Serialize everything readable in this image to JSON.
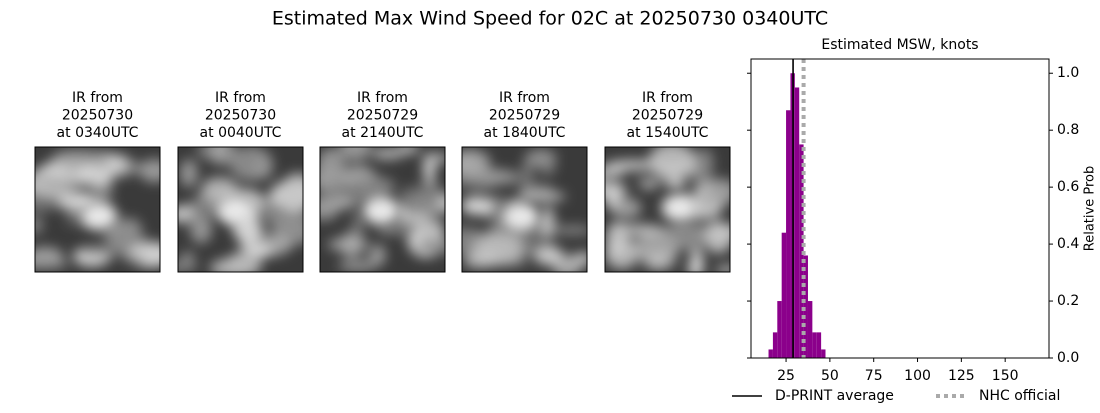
{
  "title": "Estimated Max Wind Speed for 02C at 20250730 0340UTC",
  "panels": [
    {
      "lines": [
        "IR from",
        "20250730",
        "at 0340UTC"
      ]
    },
    {
      "lines": [
        "IR from",
        "20250730",
        "at 0040UTC"
      ]
    },
    {
      "lines": [
        "IR from",
        "20250729",
        "at 2140UTC"
      ]
    },
    {
      "lines": [
        "IR from",
        "20250729",
        "at 1840UTC"
      ]
    },
    {
      "lines": [
        "IR from",
        "20250729",
        "at 1540UTC"
      ]
    }
  ],
  "chart_data": {
    "type": "histogram",
    "title": "Estimated MSW, knots",
    "y_label": "Relative Prob",
    "bins": [
      15,
      17.5,
      20,
      22.5,
      25,
      27.5,
      30,
      32.5,
      35,
      37.5,
      40,
      42.5,
      45,
      47.5
    ],
    "values": [
      0.03,
      0.09,
      0.2,
      0.44,
      0.87,
      1.0,
      0.95,
      0.75,
      0.36,
      0.2,
      0.09,
      0.09,
      0.03
    ],
    "color": "#8b008b",
    "xlim": [
      5,
      175
    ],
    "xticks": [
      25,
      50,
      75,
      100,
      125,
      150
    ],
    "ylim": [
      0,
      1.05
    ],
    "yticks": [
      {
        "value": 0,
        "label": "0.0"
      },
      {
        "value": 0.2,
        "label": "0.2"
      },
      {
        "value": 0.4,
        "label": "0.4"
      },
      {
        "value": 0.6,
        "label": "0.6"
      },
      {
        "value": 0.8,
        "label": "0.8"
      },
      {
        "value": 1,
        "label": "1.0"
      }
    ],
    "lines": [
      {
        "name": "D-PRINT average",
        "color": "#000000",
        "value": 29,
        "style": "solid"
      },
      {
        "name": "NHC official",
        "color": "#aaaaaa",
        "value": 35,
        "style": "dotted"
      }
    ],
    "legend": "bottom"
  }
}
